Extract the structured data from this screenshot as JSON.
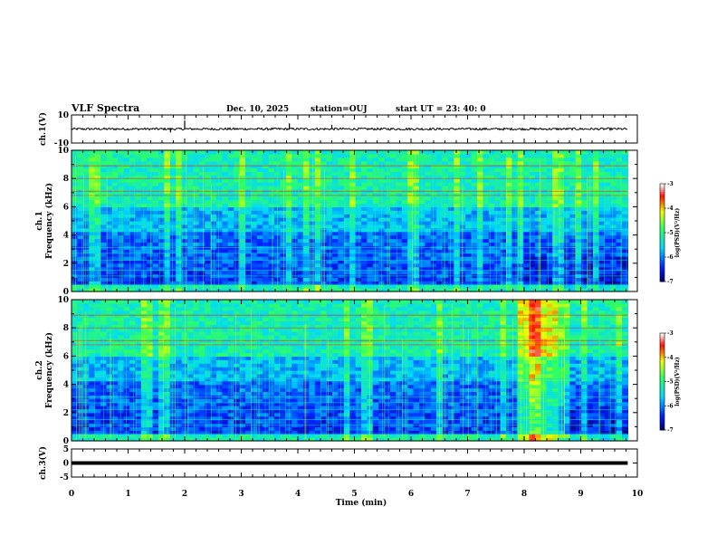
{
  "header": {
    "title": "VLF Spectra",
    "date": "Dec. 10, 2025",
    "station": "station=OUJ",
    "start": "start  UT  =   23: 40: 0"
  },
  "colors": {
    "low": "#000060",
    "mid_blue": "#0020ff",
    "cyan": "#00d8ff",
    "green": "#30ff60",
    "yellow": "#f0ff00",
    "red": "#ff1000",
    "high": "#ffffff",
    "trace": "#000000"
  },
  "chart_data": [
    {
      "id": "ch1-waveform",
      "type": "line",
      "ylabel": "ch.1(V)",
      "ylim": [
        -10,
        10
      ],
      "yticks": [
        {
          "value": 10,
          "label": "10"
        },
        {
          "value": -10,
          "label": "-10"
        }
      ],
      "baseline": 0,
      "noise_amplitude": 0.8,
      "spikes": [
        {
          "t": 2.0,
          "v": 6
        },
        {
          "t": 3.85,
          "v": 4
        },
        {
          "t": 4.6,
          "v": 3
        },
        {
          "t": 1.75,
          "v": -2.5
        }
      ]
    },
    {
      "id": "ch1-spectrogram",
      "type": "heatmap",
      "ylabel_top": "ch.1",
      "ylabel": "Frequency (kHz)",
      "ylim": [
        0,
        10
      ],
      "xlim": [
        0,
        10
      ],
      "yticks": [
        {
          "value": 0,
          "label": "0"
        },
        {
          "value": 2,
          "label": "2"
        },
        {
          "value": 4,
          "label": "4"
        },
        {
          "value": 6,
          "label": "6"
        },
        {
          "value": 8,
          "label": "8"
        },
        {
          "value": 10,
          "label": "10"
        }
      ],
      "data_extent_min": 9.83,
      "colorbar": {
        "label": "log(PSD)(V²/Hz)",
        "range": [
          -7,
          -3
        ],
        "ticks": [
          {
            "value": -3,
            "label": "-3"
          },
          {
            "value": -4,
            "label": "-4"
          },
          {
            "value": -5,
            "label": "-5"
          },
          {
            "value": -6,
            "label": "-6"
          },
          {
            "value": -7,
            "label": "-7"
          }
        ]
      },
      "bright_intervals": []
    },
    {
      "id": "ch2-spectrogram",
      "type": "heatmap",
      "ylabel_top": "ch.2",
      "ylabel": "Frequency (kHz)",
      "ylim": [
        0,
        10
      ],
      "xlim": [
        0,
        10
      ],
      "yticks": [
        {
          "value": 0,
          "label": "0"
        },
        {
          "value": 2,
          "label": "2"
        },
        {
          "value": 4,
          "label": "4"
        },
        {
          "value": 6,
          "label": "6"
        },
        {
          "value": 8,
          "label": "8"
        },
        {
          "value": 10,
          "label": "10"
        }
      ],
      "data_extent_min": 9.83,
      "colorbar": {
        "label": "log(PSD)(V²/Hz)",
        "range": [
          -7,
          -3
        ],
        "ticks": [
          {
            "value": -3,
            "label": "-3"
          },
          {
            "value": -4,
            "label": "-4"
          },
          {
            "value": -5,
            "label": "-5"
          },
          {
            "value": -6,
            "label": "-6"
          },
          {
            "value": -7,
            "label": "-7"
          }
        ]
      },
      "bright_intervals": [
        {
          "t0": 7.85,
          "t1": 8.5
        }
      ]
    },
    {
      "id": "ch3-waveform",
      "type": "line",
      "ylabel": "ch.3(V)",
      "ylim": [
        -5,
        5
      ],
      "yticks": [
        {
          "value": 5,
          "label": "5"
        },
        {
          "value": 0,
          "label": "0"
        },
        {
          "value": -5,
          "label": "-5"
        }
      ],
      "baseline": 0,
      "noise_amplitude": 0.15,
      "spikes": []
    }
  ],
  "x_axis": {
    "label": "Time (min)",
    "xlim": [
      0,
      10
    ],
    "ticks": [
      {
        "value": 0,
        "label": "0"
      },
      {
        "value": 1,
        "label": "1"
      },
      {
        "value": 2,
        "label": "2"
      },
      {
        "value": 3,
        "label": "3"
      },
      {
        "value": 4,
        "label": "4"
      },
      {
        "value": 5,
        "label": "5"
      },
      {
        "value": 6,
        "label": "6"
      },
      {
        "value": 7,
        "label": "7"
      },
      {
        "value": 8,
        "label": "8"
      },
      {
        "value": 9,
        "label": "9"
      },
      {
        "value": 10,
        "label": "10"
      }
    ]
  }
}
